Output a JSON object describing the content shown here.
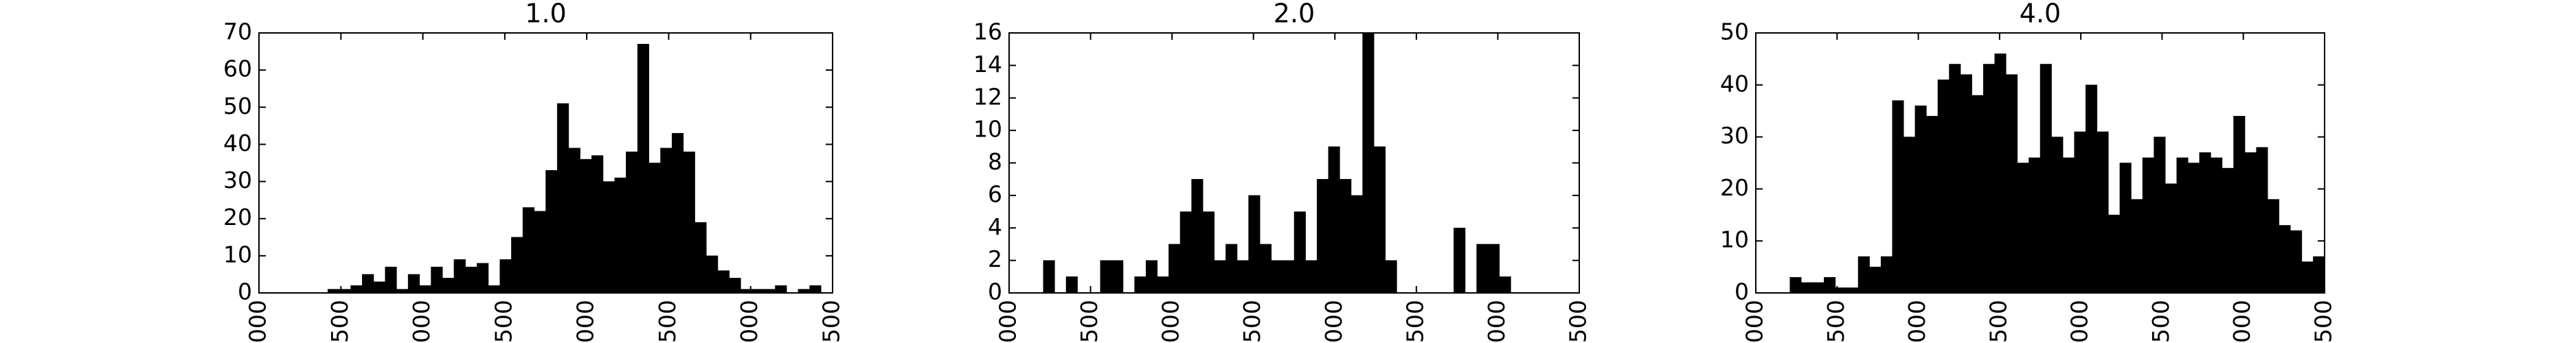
{
  "chart_data": [
    {
      "type": "histogram",
      "title": "1.0",
      "color": "#000000",
      "bins": [
        0,
        70,
        140,
        210,
        280,
        350,
        420,
        490,
        560,
        630,
        700,
        770,
        840,
        910,
        980,
        1050,
        1120,
        1190,
        1260,
        1330,
        1400,
        1470,
        1540,
        1610,
        1680,
        1750,
        1820,
        1890,
        1960,
        2030,
        2100,
        2170,
        2240,
        2310,
        2380,
        2450,
        2520,
        2590,
        2660,
        2730,
        2800,
        2870,
        2940,
        3010,
        3080,
        3150,
        3220,
        3290,
        3360,
        3430,
        3500
      ],
      "values": [
        0,
        0,
        0,
        0,
        0,
        0,
        1,
        1,
        2,
        5,
        3,
        7,
        1,
        5,
        2,
        7,
        4,
        9,
        7,
        8,
        2,
        9,
        15,
        23,
        22,
        33,
        51,
        39,
        36,
        37,
        30,
        31,
        38,
        67,
        35,
        39,
        43,
        38,
        19,
        10,
        6,
        4,
        1,
        1,
        1,
        2,
        0,
        1,
        2,
        0
      ],
      "xlim": [
        0,
        3500
      ],
      "xticks": [
        {
          "value": 0,
          "label": "000"
        },
        {
          "value": 500,
          "label": "500"
        },
        {
          "value": 1000,
          "label": "000"
        },
        {
          "value": 1500,
          "label": "500"
        },
        {
          "value": 2000,
          "label": "000"
        },
        {
          "value": 2500,
          "label": "500"
        },
        {
          "value": 3000,
          "label": "000"
        },
        {
          "value": 3500,
          "label": "500"
        }
      ],
      "ylim": [
        0,
        70
      ],
      "yticks": [
        0,
        10,
        20,
        30,
        40,
        50,
        60,
        70
      ]
    },
    {
      "type": "histogram",
      "title": "2.0",
      "color": "#000000",
      "bins": [
        0,
        70,
        140,
        210,
        280,
        350,
        420,
        490,
        560,
        630,
        700,
        770,
        840,
        910,
        980,
        1050,
        1120,
        1190,
        1260,
        1330,
        1400,
        1470,
        1540,
        1610,
        1680,
        1750,
        1820,
        1890,
        1960,
        2030,
        2100,
        2170,
        2240,
        2310,
        2380,
        2450,
        2520,
        2590,
        2660,
        2730,
        2800,
        2870,
        2940,
        3010,
        3080,
        3150,
        3220,
        3290,
        3360,
        3430,
        3500
      ],
      "values": [
        0,
        0,
        0,
        2,
        0,
        1,
        0,
        0,
        2,
        2,
        0,
        1,
        2,
        1,
        3,
        5,
        7,
        5,
        2,
        3,
        2,
        6,
        3,
        2,
        2,
        5,
        2,
        7,
        9,
        7,
        6,
        16,
        9,
        2,
        0,
        0,
        0,
        0,
        0,
        4,
        0,
        3,
        3,
        1,
        0,
        0,
        0,
        0,
        0,
        0
      ],
      "xlim": [
        0,
        3500
      ],
      "xticks": [
        {
          "value": 0,
          "label": "000"
        },
        {
          "value": 500,
          "label": "500"
        },
        {
          "value": 1000,
          "label": "000"
        },
        {
          "value": 1500,
          "label": "500"
        },
        {
          "value": 2000,
          "label": "000"
        },
        {
          "value": 2500,
          "label": "500"
        },
        {
          "value": 3000,
          "label": "000"
        },
        {
          "value": 3500,
          "label": "500"
        }
      ],
      "ylim": [
        0,
        16
      ],
      "yticks": [
        0,
        2,
        4,
        6,
        8,
        10,
        12,
        14,
        16
      ]
    },
    {
      "type": "histogram",
      "title": "4.0",
      "color": "#000000",
      "bins": [
        0,
        70,
        140,
        210,
        280,
        350,
        420,
        490,
        560,
        630,
        700,
        770,
        840,
        910,
        980,
        1050,
        1120,
        1190,
        1260,
        1330,
        1400,
        1470,
        1540,
        1610,
        1680,
        1750,
        1820,
        1890,
        1960,
        2030,
        2100,
        2170,
        2240,
        2310,
        2380,
        2450,
        2520,
        2590,
        2660,
        2730,
        2800,
        2870,
        2940,
        3010,
        3080,
        3150,
        3220,
        3290,
        3360,
        3430,
        3500
      ],
      "values": [
        0,
        0,
        0,
        3,
        2,
        2,
        3,
        1,
        1,
        7,
        5,
        7,
        37,
        30,
        36,
        34,
        41,
        44,
        42,
        38,
        44,
        46,
        42,
        25,
        26,
        44,
        30,
        26,
        31,
        40,
        31,
        15,
        25,
        18,
        26,
        30,
        21,
        26,
        25,
        27,
        26,
        24,
        34,
        27,
        28,
        18,
        13,
        12,
        6,
        7
      ],
      "xlim": [
        0,
        3500
      ],
      "xticks": [
        {
          "value": 0,
          "label": "000"
        },
        {
          "value": 500,
          "label": "500"
        },
        {
          "value": 1000,
          "label": "000"
        },
        {
          "value": 1500,
          "label": "500"
        },
        {
          "value": 2000,
          "label": "000"
        },
        {
          "value": 2500,
          "label": "500"
        },
        {
          "value": 3000,
          "label": "000"
        },
        {
          "value": 3500,
          "label": "500"
        }
      ],
      "ylim": [
        0,
        50
      ],
      "yticks": [
        0,
        10,
        20,
        30,
        40,
        50
      ]
    }
  ]
}
